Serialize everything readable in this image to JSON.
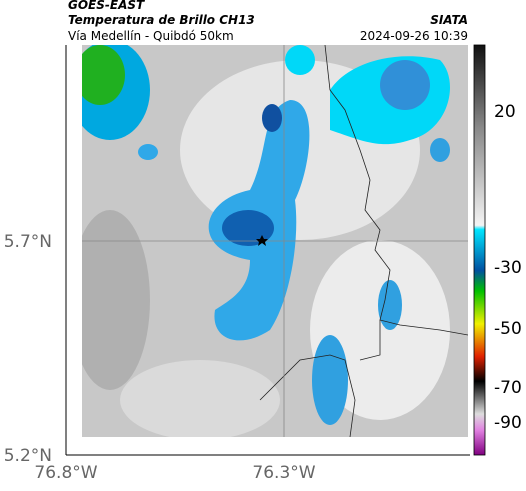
{
  "header": {
    "source": "GOES-EAST",
    "title": "Temperatura de Brillo CH13",
    "subtitle": "Vía Medellín - Quibdó 50km",
    "agency": "SIATA",
    "datetime": "2024-09-26 10:39"
  },
  "map": {
    "lat_labels": [
      "5.7°N",
      "5.2°N"
    ],
    "lon_labels": [
      "76.8°W",
      "76.3°W"
    ]
  },
  "colorbar": {
    "ticks": [
      20,
      -30,
      -50,
      -70,
      -90
    ]
  }
}
